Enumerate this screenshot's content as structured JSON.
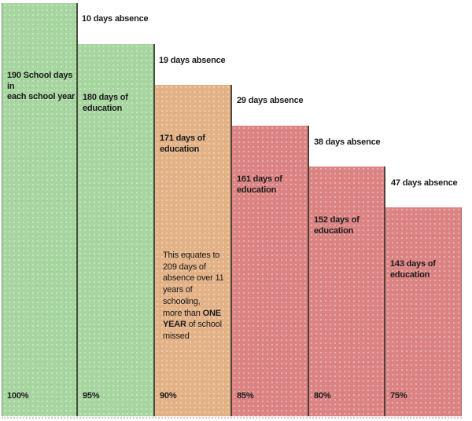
{
  "chart_data": {
    "type": "bar",
    "title": "",
    "xlabel": "",
    "ylabel": "",
    "categories": [
      "100%",
      "95%",
      "90%",
      "85%",
      "80%",
      "75%"
    ],
    "series": [
      {
        "name": "school days / days of education",
        "values": [
          190,
          180,
          171,
          161,
          152,
          143
        ]
      },
      {
        "name": "days absence",
        "values": [
          0,
          10,
          19,
          29,
          38,
          47
        ]
      }
    ],
    "annotation": "This equates to 209 days of absence over 11 years of schooling, more than ONE YEAR of school missed",
    "legend": "none",
    "grid": false,
    "colors": {
      "green": "#a7d6a0",
      "tan": "#e3b286",
      "red": "#dc8484",
      "divider": "#343028",
      "text": "#1b1b1b"
    }
  },
  "bars": [
    {
      "education_label": "190 School days in\neach school year",
      "absence_label": "",
      "percent": "100%",
      "color": "#a7d6a0"
    },
    {
      "education_label": "180 days of\neducation",
      "absence_label": "10 days absence",
      "percent": "95%",
      "color": "#a7d6a0"
    },
    {
      "education_label": "171 days of\neducation",
      "absence_label": "19 days absence",
      "percent": "90%",
      "color": "#e3b286"
    },
    {
      "education_label": "161 days of\neducation",
      "absence_label": "29 days absence",
      "percent": "85%",
      "color": "#dc8484"
    },
    {
      "education_label": "152 days of\neducation",
      "absence_label": "38 days absence",
      "percent": "80%",
      "color": "#dc8484"
    },
    {
      "education_label": "143 days of\neducation",
      "absence_label": "47 days absence",
      "percent": "75%",
      "color": "#dc8484"
    }
  ],
  "annotation_parts": {
    "pre": "This equates to\n209 days of\nabsence over 11\nyears of schooling,\nmore than ",
    "bold": "ONE\nYEAR",
    "post": " of school\nmissed"
  }
}
